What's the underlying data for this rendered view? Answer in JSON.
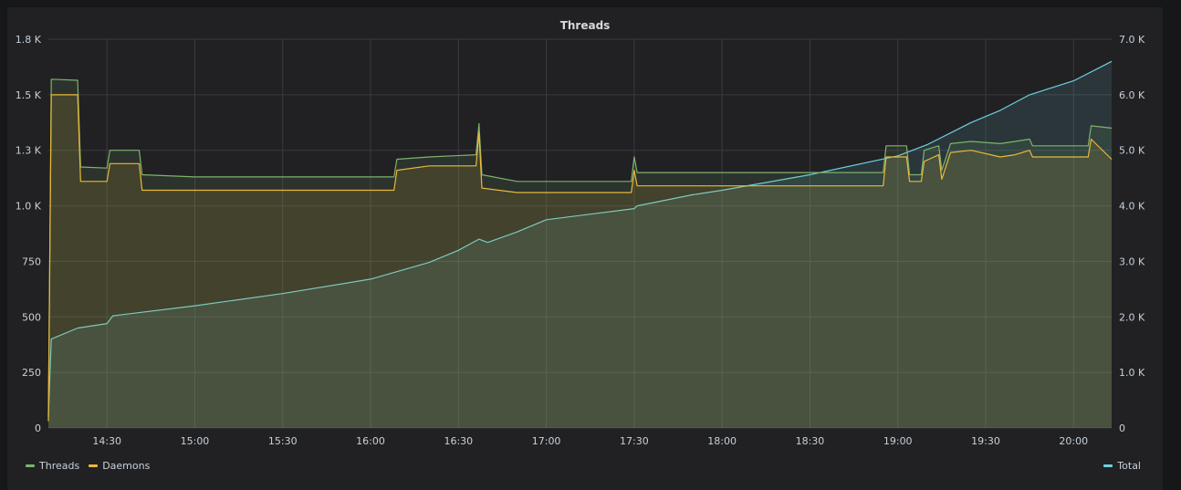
{
  "panel": {
    "title": "Threads"
  },
  "chart_data": {
    "type": "line",
    "title": "Threads",
    "x_range": [
      "14:10",
      "20:13"
    ],
    "x_ticks": [
      "14:30",
      "15:00",
      "15:30",
      "16:00",
      "16:30",
      "17:00",
      "17:30",
      "18:00",
      "18:30",
      "19:00",
      "19:30",
      "20:00"
    ],
    "y_left": {
      "range": [
        0,
        1750
      ],
      "ticks": [
        0,
        250,
        500,
        750,
        1000,
        1250,
        1500,
        1750
      ],
      "tick_labels": [
        "0",
        "250",
        "500",
        "750",
        "1.0 K",
        "1.3 K",
        "1.5 K",
        "1.8 K"
      ]
    },
    "y_right": {
      "range": [
        0,
        7000
      ],
      "ticks": [
        0,
        1000,
        2000,
        3000,
        4000,
        5000,
        6000,
        7000
      ],
      "tick_labels": [
        "0",
        "1.0 K",
        "2.0 K",
        "3.0 K",
        "4.0 K",
        "5.0 K",
        "6.0 K",
        "7.0 K"
      ]
    },
    "grid": true,
    "legend_left": [
      "Threads",
      "Daemons"
    ],
    "legend_right": [
      "Total"
    ],
    "series": [
      {
        "name": "Threads",
        "axis": "left",
        "color": "#7eb26d",
        "points": [
          [
            "14:10",
            50
          ],
          [
            "14:11",
            1570
          ],
          [
            "14:20",
            1565
          ],
          [
            "14:21",
            1175
          ],
          [
            "14:30",
            1170
          ],
          [
            "14:31",
            1250
          ],
          [
            "14:41",
            1250
          ],
          [
            "14:42",
            1140
          ],
          [
            "15:00",
            1130
          ],
          [
            "15:30",
            1130
          ],
          [
            "16:00",
            1130
          ],
          [
            "16:08",
            1130
          ],
          [
            "16:09",
            1210
          ],
          [
            "16:20",
            1220
          ],
          [
            "16:36",
            1230
          ],
          [
            "16:37",
            1370
          ],
          [
            "16:38",
            1140
          ],
          [
            "16:50",
            1110
          ],
          [
            "17:00",
            1110
          ],
          [
            "17:29",
            1110
          ],
          [
            "17:30",
            1220
          ],
          [
            "17:31",
            1150
          ],
          [
            "18:00",
            1150
          ],
          [
            "18:30",
            1150
          ],
          [
            "18:55",
            1150
          ],
          [
            "18:56",
            1270
          ],
          [
            "19:03",
            1270
          ],
          [
            "19:04",
            1140
          ],
          [
            "19:08",
            1140
          ],
          [
            "19:09",
            1250
          ],
          [
            "19:14",
            1270
          ],
          [
            "19:15",
            1160
          ],
          [
            "19:18",
            1280
          ],
          [
            "19:25",
            1290
          ],
          [
            "19:35",
            1280
          ],
          [
            "19:40",
            1290
          ],
          [
            "19:45",
            1300
          ],
          [
            "19:46",
            1270
          ],
          [
            "20:05",
            1270
          ],
          [
            "20:06",
            1360
          ],
          [
            "20:13",
            1350
          ]
        ]
      },
      {
        "name": "Daemons",
        "axis": "left",
        "color": "#eab839",
        "points": [
          [
            "14:10",
            30
          ],
          [
            "14:11",
            1500
          ],
          [
            "14:20",
            1500
          ],
          [
            "14:21",
            1110
          ],
          [
            "14:30",
            1110
          ],
          [
            "14:31",
            1190
          ],
          [
            "14:41",
            1190
          ],
          [
            "14:42",
            1070
          ],
          [
            "15:00",
            1070
          ],
          [
            "15:30",
            1070
          ],
          [
            "16:00",
            1070
          ],
          [
            "16:08",
            1070
          ],
          [
            "16:09",
            1160
          ],
          [
            "16:20",
            1180
          ],
          [
            "16:36",
            1180
          ],
          [
            "16:37",
            1330
          ],
          [
            "16:38",
            1080
          ],
          [
            "16:50",
            1060
          ],
          [
            "17:00",
            1060
          ],
          [
            "17:29",
            1060
          ],
          [
            "17:30",
            1160
          ],
          [
            "17:31",
            1090
          ],
          [
            "18:00",
            1090
          ],
          [
            "18:30",
            1090
          ],
          [
            "18:55",
            1090
          ],
          [
            "18:56",
            1220
          ],
          [
            "19:03",
            1220
          ],
          [
            "19:04",
            1110
          ],
          [
            "19:08",
            1110
          ],
          [
            "19:09",
            1200
          ],
          [
            "19:14",
            1230
          ],
          [
            "19:15",
            1120
          ],
          [
            "19:18",
            1240
          ],
          [
            "19:25",
            1250
          ],
          [
            "19:35",
            1220
          ],
          [
            "19:40",
            1230
          ],
          [
            "19:45",
            1250
          ],
          [
            "19:46",
            1220
          ],
          [
            "20:05",
            1220
          ],
          [
            "20:06",
            1300
          ],
          [
            "20:13",
            1210
          ]
        ]
      },
      {
        "name": "Total",
        "axis": "right",
        "color": "#6ed0e0",
        "points": [
          [
            "14:10",
            200
          ],
          [
            "14:11",
            1600
          ],
          [
            "14:20",
            1800
          ],
          [
            "14:30",
            1880
          ],
          [
            "14:32",
            2020
          ],
          [
            "15:00",
            2200
          ],
          [
            "15:30",
            2420
          ],
          [
            "16:00",
            2680
          ],
          [
            "16:20",
            2980
          ],
          [
            "16:30",
            3200
          ],
          [
            "16:37",
            3400
          ],
          [
            "16:38",
            3380
          ],
          [
            "16:40",
            3340
          ],
          [
            "16:50",
            3530
          ],
          [
            "17:00",
            3750
          ],
          [
            "17:30",
            3950
          ],
          [
            "17:31",
            4000
          ],
          [
            "17:50",
            4200
          ],
          [
            "18:00",
            4280
          ],
          [
            "18:30",
            4560
          ],
          [
            "19:00",
            4900
          ],
          [
            "19:10",
            5100
          ],
          [
            "19:25",
            5500
          ],
          [
            "19:35",
            5720
          ],
          [
            "19:45",
            6000
          ],
          [
            "20:00",
            6250
          ],
          [
            "20:13",
            6600
          ]
        ]
      }
    ]
  }
}
